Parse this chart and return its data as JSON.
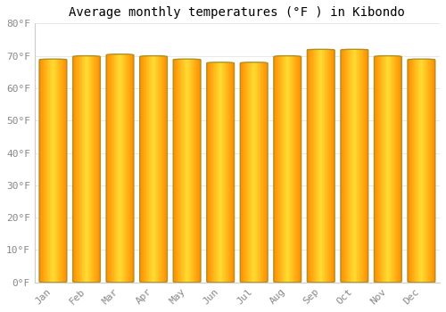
{
  "title": "Average monthly temperatures (°F ) in Kibondo",
  "months": [
    "Jan",
    "Feb",
    "Mar",
    "Apr",
    "May",
    "Jun",
    "Jul",
    "Aug",
    "Sep",
    "Oct",
    "Nov",
    "Dec"
  ],
  "values": [
    69,
    70,
    70.5,
    70,
    69,
    68,
    68,
    70,
    72,
    72,
    70,
    69
  ],
  "ylim": [
    0,
    80
  ],
  "yticks": [
    0,
    10,
    20,
    30,
    40,
    50,
    60,
    70,
    80
  ],
  "ytick_labels": [
    "0°F",
    "10°F",
    "20°F",
    "30°F",
    "40°F",
    "50°F",
    "60°F",
    "70°F",
    "80°F"
  ],
  "bar_center_color": "#FFD700",
  "bar_edge_color": "#E8960A",
  "bar_border_color": "#B8960A",
  "background_color": "#FFFFFF",
  "grid_color": "#E8E8E8",
  "title_fontsize": 10,
  "tick_fontsize": 8,
  "bar_width": 0.82
}
